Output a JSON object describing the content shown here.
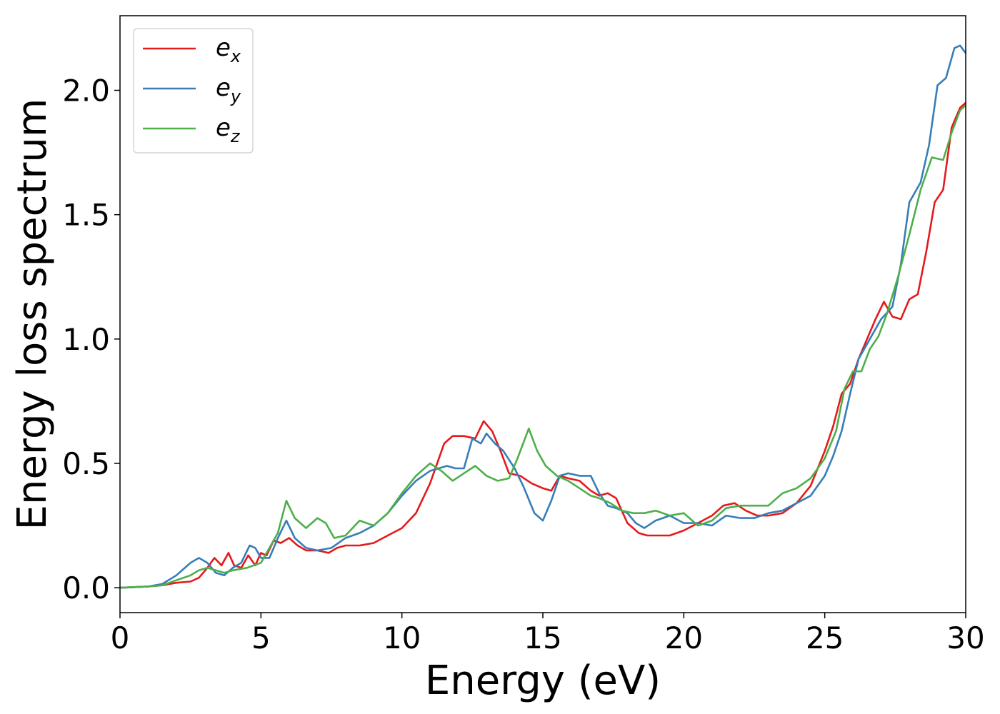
{
  "chart_data": {
    "type": "line",
    "xlabel": "Energy (eV)",
    "ylabel": "Energy loss spectrum",
    "xlim": [
      0,
      30
    ],
    "ylim": [
      -0.1,
      2.3
    ],
    "xticks": [
      "0",
      "5",
      "10",
      "15",
      "20",
      "25",
      "30"
    ],
    "yticks": [
      "0.0",
      "0.5",
      "1.0",
      "1.5",
      "2.0"
    ],
    "grid": false,
    "legend_position": "top-left",
    "series": [
      {
        "name": "e",
        "subscript": "x",
        "color": "#e41a1c",
        "x": [
          0,
          1,
          1.5,
          2,
          2.5,
          2.8,
          3.1,
          3.35,
          3.6,
          3.85,
          4.05,
          4.3,
          4.55,
          4.8,
          5.0,
          5.2,
          5.45,
          5.7,
          6.0,
          6.3,
          6.6,
          7.0,
          7.4,
          7.7,
          8.0,
          8.5,
          9.0,
          9.5,
          10.0,
          10.5,
          11.0,
          11.5,
          11.8,
          12.2,
          12.6,
          12.9,
          13.2,
          13.5,
          13.8,
          14.2,
          14.6,
          15.0,
          15.3,
          15.6,
          15.9,
          16.3,
          16.7,
          17.0,
          17.3,
          17.6,
          18.0,
          18.4,
          18.7,
          19.0,
          19.5,
          20.0,
          20.5,
          21.0,
          21.4,
          21.8,
          22.2,
          22.6,
          23.0,
          23.5,
          24.0,
          24.5,
          25.0,
          25.3,
          25.6,
          25.9,
          26.2,
          26.5,
          26.8,
          27.1,
          27.4,
          27.7,
          28.0,
          28.3,
          28.6,
          28.9,
          29.2,
          29.5,
          29.8,
          30.0
        ],
        "y": [
          0.0,
          0.005,
          0.01,
          0.02,
          0.025,
          0.04,
          0.08,
          0.12,
          0.09,
          0.14,
          0.09,
          0.08,
          0.13,
          0.09,
          0.14,
          0.13,
          0.19,
          0.18,
          0.2,
          0.17,
          0.15,
          0.15,
          0.14,
          0.16,
          0.17,
          0.17,
          0.18,
          0.21,
          0.24,
          0.3,
          0.42,
          0.58,
          0.61,
          0.61,
          0.6,
          0.67,
          0.63,
          0.55,
          0.46,
          0.45,
          0.42,
          0.4,
          0.39,
          0.45,
          0.44,
          0.43,
          0.39,
          0.37,
          0.38,
          0.36,
          0.26,
          0.22,
          0.21,
          0.21,
          0.21,
          0.23,
          0.26,
          0.29,
          0.33,
          0.34,
          0.31,
          0.29,
          0.29,
          0.3,
          0.34,
          0.41,
          0.55,
          0.65,
          0.78,
          0.82,
          0.92,
          1.0,
          1.08,
          1.15,
          1.09,
          1.08,
          1.16,
          1.18,
          1.35,
          1.55,
          1.6,
          1.85,
          1.93,
          1.95
        ]
      },
      {
        "name": "e",
        "subscript": "y",
        "color": "#377eb8",
        "x": [
          0,
          1,
          1.5,
          2,
          2.5,
          2.8,
          3.1,
          3.4,
          3.7,
          4.0,
          4.3,
          4.6,
          4.8,
          5.0,
          5.3,
          5.6,
          5.9,
          6.2,
          6.6,
          7.0,
          7.5,
          8.0,
          8.5,
          9.0,
          9.5,
          10.0,
          10.5,
          11.0,
          11.3,
          11.6,
          11.9,
          12.2,
          12.5,
          12.8,
          13.0,
          13.3,
          13.6,
          14.0,
          14.3,
          14.7,
          15.0,
          15.3,
          15.6,
          15.9,
          16.3,
          16.7,
          17.0,
          17.3,
          17.6,
          18.0,
          18.3,
          18.6,
          19.0,
          19.5,
          20.0,
          20.5,
          21.0,
          21.5,
          22.0,
          22.5,
          23.0,
          23.5,
          24.0,
          24.5,
          25.0,
          25.3,
          25.6,
          25.9,
          26.2,
          26.6,
          27.0,
          27.4,
          27.7,
          28.0,
          28.4,
          28.7,
          29.0,
          29.3,
          29.6,
          29.8,
          30.0
        ],
        "y": [
          0.0,
          0.005,
          0.015,
          0.05,
          0.1,
          0.12,
          0.1,
          0.06,
          0.05,
          0.08,
          0.1,
          0.17,
          0.16,
          0.12,
          0.12,
          0.2,
          0.27,
          0.2,
          0.16,
          0.15,
          0.16,
          0.2,
          0.22,
          0.25,
          0.3,
          0.37,
          0.43,
          0.47,
          0.48,
          0.49,
          0.48,
          0.48,
          0.6,
          0.58,
          0.62,
          0.58,
          0.55,
          0.48,
          0.41,
          0.3,
          0.27,
          0.35,
          0.45,
          0.46,
          0.45,
          0.45,
          0.38,
          0.33,
          0.32,
          0.3,
          0.26,
          0.24,
          0.27,
          0.29,
          0.26,
          0.26,
          0.25,
          0.29,
          0.28,
          0.28,
          0.3,
          0.31,
          0.34,
          0.37,
          0.45,
          0.53,
          0.63,
          0.78,
          0.92,
          1.0,
          1.08,
          1.13,
          1.3,
          1.55,
          1.63,
          1.78,
          2.02,
          2.05,
          2.17,
          2.18,
          2.15
        ]
      },
      {
        "name": "e",
        "subscript": "z",
        "color": "#4daf4a",
        "x": [
          0,
          1,
          1.5,
          2,
          2.5,
          2.8,
          3.1,
          3.4,
          3.7,
          4.0,
          4.5,
          5.0,
          5.3,
          5.6,
          5.9,
          6.2,
          6.6,
          7.0,
          7.3,
          7.6,
          8.0,
          8.5,
          9.0,
          9.5,
          10.0,
          10.5,
          11.0,
          11.4,
          11.8,
          12.2,
          12.6,
          13.0,
          13.4,
          13.8,
          14.1,
          14.5,
          14.8,
          15.1,
          15.5,
          15.9,
          16.3,
          16.7,
          17.0,
          17.4,
          17.8,
          18.2,
          18.6,
          19.0,
          19.5,
          20.0,
          20.5,
          21.0,
          21.5,
          22.0,
          22.5,
          23.0,
          23.5,
          24.0,
          24.5,
          25.0,
          25.4,
          25.7,
          26.0,
          26.3,
          26.6,
          26.9,
          27.2,
          27.6,
          28.0,
          28.4,
          28.8,
          29.2,
          29.5,
          29.8,
          30.0
        ],
        "y": [
          0.0,
          0.005,
          0.01,
          0.03,
          0.05,
          0.07,
          0.08,
          0.07,
          0.06,
          0.07,
          0.08,
          0.1,
          0.16,
          0.22,
          0.35,
          0.28,
          0.24,
          0.28,
          0.26,
          0.2,
          0.21,
          0.27,
          0.25,
          0.3,
          0.38,
          0.45,
          0.5,
          0.47,
          0.43,
          0.46,
          0.49,
          0.45,
          0.43,
          0.44,
          0.52,
          0.64,
          0.55,
          0.49,
          0.45,
          0.43,
          0.4,
          0.37,
          0.36,
          0.34,
          0.31,
          0.3,
          0.3,
          0.31,
          0.29,
          0.3,
          0.25,
          0.27,
          0.32,
          0.33,
          0.33,
          0.33,
          0.38,
          0.4,
          0.44,
          0.52,
          0.63,
          0.8,
          0.87,
          0.87,
          0.96,
          1.01,
          1.1,
          1.25,
          1.42,
          1.6,
          1.73,
          1.72,
          1.83,
          1.92,
          1.94
        ]
      }
    ]
  }
}
